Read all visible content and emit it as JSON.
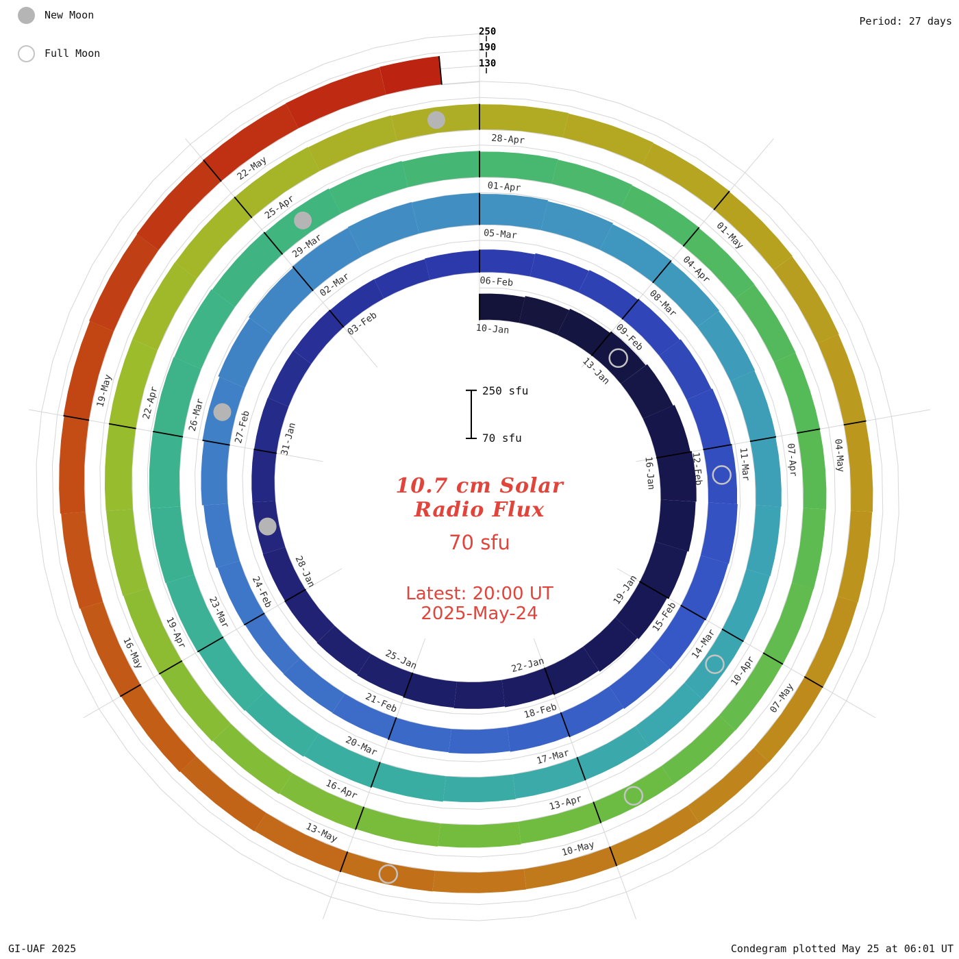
{
  "page": {
    "legend": {
      "new_moon": "New Moon",
      "full_moon": "Full Moon"
    },
    "period_label": "Period: 27 days",
    "credit_left": "GI-UAF 2025",
    "credit_right": "Condegram plotted May 25 at 06:01 UT"
  },
  "center": {
    "title_line1": "10.7 cm Solar",
    "title_line2": "Radio Flux",
    "baseline_label": "70 sfu",
    "latest_line1": "Latest: 20:00 UT",
    "latest_line2": "2025-May-24"
  },
  "chart_data": {
    "type": "bar",
    "variant": "condegram-spiral",
    "title": "10.7 cm Solar Radio Flux",
    "units": "sfu",
    "period_days": 27,
    "start_date": "2025-01-10",
    "latest_reading": "2025-May-24 20:00 UT",
    "baseline_sfu": 70,
    "radial_ticks_sfu": [
      130,
      190,
      250
    ],
    "radial_axis_labels": [
      "250",
      "190",
      "130"
    ],
    "scale_bar": {
      "top_label": "250 sfu",
      "bottom_label": "70 sfu"
    },
    "tick_interval_days": 3,
    "last_day_fraction": 0.6,
    "date_labels": [
      "10-Jan",
      "13-Jan",
      "16-Jan",
      "19-Jan",
      "22-Jan",
      "25-Jan",
      "28-Jan",
      "31-Jan",
      "03-Feb",
      "06-Feb",
      "09-Feb",
      "12-Feb",
      "15-Feb",
      "18-Feb",
      "21-Feb",
      "24-Feb",
      "27-Feb",
      "02-Mar",
      "05-Mar",
      "08-Mar",
      "11-Mar",
      "14-Mar",
      "17-Mar",
      "20-Mar",
      "23-Mar",
      "26-Mar",
      "29-Mar",
      "01-Apr",
      "04-Apr",
      "07-Apr",
      "10-Apr",
      "13-Apr",
      "16-Apr",
      "19-Apr",
      "22-Apr",
      "25-Apr",
      "28-Apr",
      "01-May",
      "04-May",
      "07-May",
      "10-May",
      "13-May",
      "16-May",
      "19-May",
      "22-May"
    ],
    "daily_flux_sfu": [
      168,
      173,
      179,
      186,
      193,
      199,
      204,
      201,
      196,
      189,
      183,
      177,
      173,
      170,
      168,
      165,
      162,
      160,
      158,
      157,
      156,
      155,
      154,
      153,
      151,
      150,
      152,
      155,
      159,
      163,
      167,
      171,
      175,
      178,
      180,
      178,
      175,
      171,
      167,
      163,
      160,
      158,
      156,
      155,
      154,
      157,
      161,
      167,
      173,
      179,
      184,
      188,
      191,
      189,
      185,
      181,
      177,
      173,
      170,
      168,
      166,
      164,
      162,
      161,
      160,
      160,
      161,
      163,
      166,
      170,
      174,
      177,
      180,
      182,
      183,
      182,
      180,
      177,
      174,
      171,
      168,
      165,
      163,
      161,
      159,
      158,
      157,
      156,
      155,
      154,
      153,
      152,
      152,
      153,
      155,
      157,
      160,
      163,
      166,
      168,
      170,
      171,
      172,
      172,
      171,
      170,
      168,
      166,
      164,
      162,
      160,
      158,
      156,
      154,
      152,
      150,
      149,
      148,
      147,
      146,
      146,
      147,
      148,
      150,
      152,
      155,
      158,
      161,
      164,
      167,
      170,
      172,
      174,
      175,
      176
    ],
    "new_moons": [
      {
        "date": "2025-01-29",
        "day": 19
      },
      {
        "date": "2025-02-27",
        "day": 48
      },
      {
        "date": "2025-03-29",
        "day": 78
      },
      {
        "date": "2025-04-27",
        "day": 107
      }
    ],
    "full_moons": [
      {
        "date": "2025-01-13",
        "day": 3
      },
      {
        "date": "2025-02-12",
        "day": 33
      },
      {
        "date": "2025-03-14",
        "day": 63
      },
      {
        "date": "2025-04-12",
        "day": 92
      },
      {
        "date": "2025-05-12",
        "day": 122
      }
    ],
    "colormap": [
      {
        "s": 0.0,
        "color": "#14143a"
      },
      {
        "s": 0.07,
        "color": "#181856"
      },
      {
        "s": 0.14,
        "color": "#222478"
      },
      {
        "s": 0.2,
        "color": "#2c3aae"
      },
      {
        "s": 0.27,
        "color": "#3658c6"
      },
      {
        "s": 0.34,
        "color": "#3f78c8"
      },
      {
        "s": 0.4,
        "color": "#4190c2"
      },
      {
        "s": 0.46,
        "color": "#3ca4b4"
      },
      {
        "s": 0.52,
        "color": "#3aaf9f"
      },
      {
        "s": 0.58,
        "color": "#40b57f"
      },
      {
        "s": 0.64,
        "color": "#55ba58"
      },
      {
        "s": 0.7,
        "color": "#74bc3e"
      },
      {
        "s": 0.76,
        "color": "#9cbc2c"
      },
      {
        "s": 0.81,
        "color": "#b4a922"
      },
      {
        "s": 0.86,
        "color": "#bd921d"
      },
      {
        "s": 0.9,
        "color": "#c2751a"
      },
      {
        "s": 0.95,
        "color": "#c34f15"
      },
      {
        "s": 1.0,
        "color": "#bd2011"
      }
    ],
    "layout": {
      "grid": true,
      "direction": "clockwise",
      "start_angle": "top",
      "legend_position": "top-left"
    }
  }
}
